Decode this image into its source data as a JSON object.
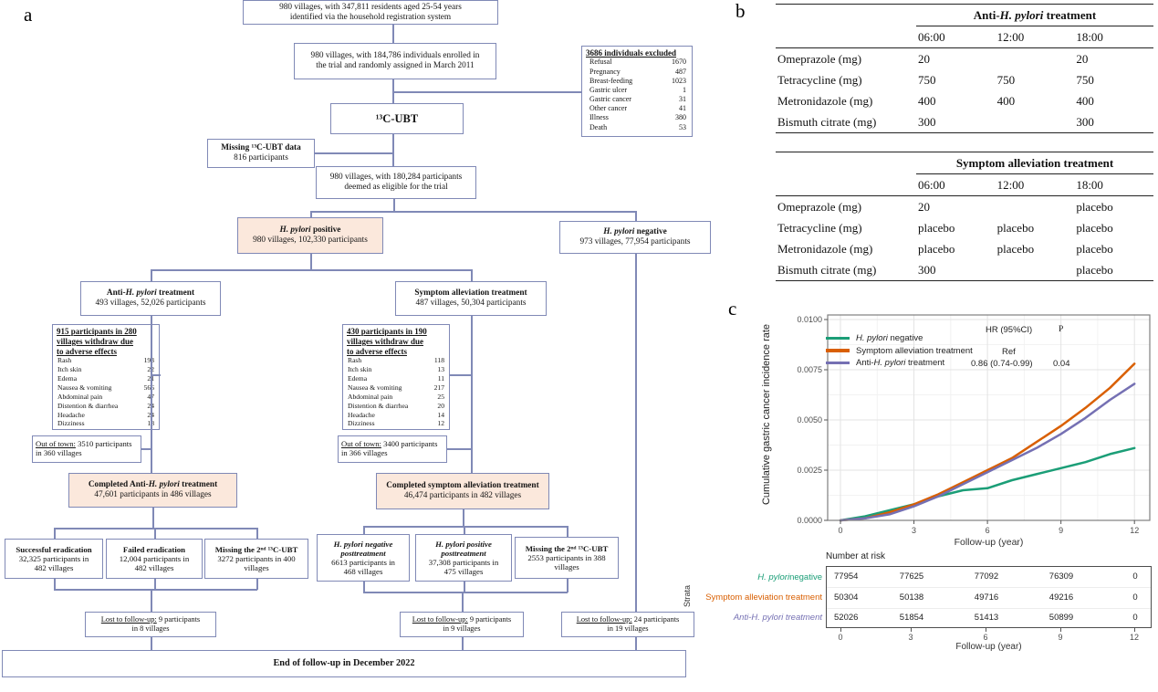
{
  "panel_labels": {
    "a": "a",
    "b": "b",
    "c": "c"
  },
  "flow": {
    "top": {
      "lines": [
        "980 villages, with 347,811 residents aged 25-54 years",
        "identified via the household registration system"
      ]
    },
    "enroll": {
      "lines": [
        "980 villages, with 184,786 individuals enrolled in",
        "the trial and randomly assigned in March 2011"
      ]
    },
    "excluded": {
      "title": "3686 individuals excluded",
      "items": [
        {
          "label": "Refusal",
          "value": "1670"
        },
        {
          "label": "Pregnancy",
          "value": "487"
        },
        {
          "label": "Breast-feeding",
          "value": "1023"
        },
        {
          "label": "Gastric ulcer",
          "value": "1"
        },
        {
          "label": "Gastric cancer",
          "value": "31"
        },
        {
          "label": "Other cancer",
          "value": "41"
        },
        {
          "label": "Illness",
          "value": "380"
        },
        {
          "label": "Death",
          "value": "53"
        }
      ]
    },
    "ubt": {
      "title": "¹³C-UBT"
    },
    "missing_ubt": {
      "title": "Missing ¹³C-UBT data",
      "sub": "816 participants"
    },
    "eligible": {
      "lines": [
        "980 villages, with 180,284 participants",
        "deemed as eligible for the trial"
      ]
    },
    "hp_pos": {
      "title": [
        {
          "t": "H. pylori",
          "b": 1,
          "i": 1
        },
        {
          "t": " positive",
          "b": 1
        }
      ],
      "sub": "980 villages, 102,330 participants"
    },
    "hp_neg": {
      "title": [
        {
          "t": "H. pylori",
          "b": 1,
          "i": 1
        },
        {
          "t": " negative",
          "b": 1
        }
      ],
      "sub": "973 villages, 77,954 participants"
    },
    "anti": {
      "title": [
        {
          "t": "Anti-",
          "b": 1
        },
        {
          "t": "H. pylori",
          "b": 1,
          "i": 1
        },
        {
          "t": " treatment",
          "b": 1
        }
      ],
      "sub": "493 villages, 52,026 participants"
    },
    "symp": {
      "title": "Symptom alleviation treatment",
      "sub": "487 villages, 50,304 participants"
    },
    "withdraw_left": {
      "title_lines": [
        "915 participants in 280",
        "villages withdraw due",
        "to adverse effects"
      ],
      "items": [
        {
          "label": "Rash",
          "value": "193"
        },
        {
          "label": "Itch skin",
          "value": "22"
        },
        {
          "label": "Edema",
          "value": "21"
        },
        {
          "label": "Nausea & vomiting",
          "value": "566"
        },
        {
          "label": "Abdominal pain",
          "value": "47"
        },
        {
          "label": "Distention & diarrhea",
          "value": "24"
        },
        {
          "label": "Headache",
          "value": "24"
        },
        {
          "label": "Dizziness",
          "value": "18"
        }
      ]
    },
    "withdraw_right": {
      "title_lines": [
        "430 participants in 190",
        "villages withdraw due",
        "to adverse effects"
      ],
      "items": [
        {
          "label": "Rash",
          "value": "118"
        },
        {
          "label": "Itch skin",
          "value": "13"
        },
        {
          "label": "Edema",
          "value": "11"
        },
        {
          "label": "Nausea & vomiting",
          "value": "217"
        },
        {
          "label": "Abdominal pain",
          "value": "25"
        },
        {
          "label": "Distention & diarrhea",
          "value": "20"
        },
        {
          "label": "Headache",
          "value": "14"
        },
        {
          "label": "Dizziness",
          "value": "12"
        }
      ]
    },
    "oot_left": {
      "text": [
        {
          "t": "Out of town:",
          "u": 1
        },
        {
          "t": " 3510 participants"
        }
      ],
      "line2": "in 360 villages"
    },
    "oot_right": {
      "text": [
        {
          "t": "Out of town:",
          "u": 1
        },
        {
          "t": " 3400 participants"
        }
      ],
      "line2": "in 366 villages"
    },
    "completed_anti": {
      "title": [
        {
          "t": "Completed Anti-",
          "b": 1
        },
        {
          "t": "H. pylori",
          "b": 1,
          "i": 1
        },
        {
          "t": " treatment",
          "b": 1
        }
      ],
      "sub": "47,601 participants in 486 villages"
    },
    "completed_symp": {
      "title": "Completed symptom alleviation treatment",
      "sub": "46,474 participants in 482 villages"
    },
    "succ": {
      "title": "Successful eradication",
      "lines": [
        "32,325 participants in",
        "482 villages"
      ]
    },
    "fail": {
      "title": "Failed eradication",
      "lines": [
        "12,004 participants in",
        "482 villages"
      ]
    },
    "miss1": {
      "title": "Missing the 2ⁿᵈ ¹³C-UBT",
      "lines": [
        "3272 participants in 400",
        "villages"
      ]
    },
    "hneg_post": {
      "title_lines": [
        "H. pylori negative",
        "posttreatment"
      ],
      "lines": [
        "6613 participants in",
        "468 villages"
      ]
    },
    "hpos_post": {
      "title_lines": [
        "H. pylori positive",
        "posttreatment"
      ],
      "lines": [
        "37,308 participants in",
        "475 villages"
      ]
    },
    "miss2": {
      "title": "Missing the 2ⁿᵈ ¹³C-UBT",
      "lines": [
        "2553 participants in 388",
        "villages"
      ]
    },
    "lost_left": {
      "text": [
        {
          "t": "Lost to follow-up:",
          "u": 1
        },
        {
          "t": " 9 participants"
        }
      ],
      "line2": "in 8 villages"
    },
    "lost_mid": {
      "text": [
        {
          "t": "Lost to follow-up:",
          "u": 1
        },
        {
          "t": " 9 participants"
        }
      ],
      "line2": "in 9 villages"
    },
    "lost_right": {
      "text": [
        {
          "t": "Lost to follow-up:",
          "u": 1
        },
        {
          "t": " 24 participants"
        }
      ],
      "line2": "in 19 villages"
    },
    "end": {
      "title": "End of follow-up in December 2022"
    }
  },
  "tables": {
    "anti": {
      "header": [
        {
          "t": "Anti-",
          "b": 1
        },
        {
          "t": "H. pylori",
          "b": 1,
          "i": 1
        },
        {
          "t": " treatment",
          "b": 1
        }
      ],
      "times": [
        "06:00",
        "12:00",
        "18:00"
      ],
      "rows": [
        {
          "label": "Omeprazole (mg)",
          "values": [
            "20",
            "",
            "20"
          ]
        },
        {
          "label": "Tetracycline (mg)",
          "values": [
            "750",
            "750",
            "750"
          ]
        },
        {
          "label": "Metronidazole (mg)",
          "values": [
            "400",
            "400",
            "400"
          ]
        },
        {
          "label": "Bismuth citrate (mg)",
          "values": [
            "300",
            "",
            "300"
          ]
        }
      ]
    },
    "symptom": {
      "header": [
        {
          "t": "Symptom alleviation treatment",
          "b": 1
        }
      ],
      "times": [
        "06:00",
        "12:00",
        "18:00"
      ],
      "rows": [
        {
          "label": "Omeprazole (mg)",
          "values": [
            "20",
            "",
            "placebo"
          ]
        },
        {
          "label": "Tetracycline (mg)",
          "values": [
            "placebo",
            "placebo",
            "placebo"
          ]
        },
        {
          "label": "Metronidazole (mg)",
          "values": [
            "placebo",
            "placebo",
            "placebo"
          ]
        },
        {
          "label": "Bismuth citrate (mg)",
          "values": [
            "300",
            "",
            "placebo"
          ]
        }
      ]
    }
  },
  "chart_data": {
    "type": "line",
    "xlabel": "Follow-up (year)",
    "ylabel": "Cumulative gastric cancer incidence rate",
    "xlim": [
      0,
      12
    ],
    "ylim": [
      0,
      0.01
    ],
    "xticks": [
      0,
      3,
      6,
      9,
      12
    ],
    "yticks": [
      0,
      0.0025,
      0.005,
      0.0075,
      0.01
    ],
    "ytick_labels": [
      "0.0000",
      "0.0025",
      "0.0050",
      "0.0075",
      "0.0100"
    ],
    "grid": true,
    "legend_position": "top-left",
    "x": [
      0,
      1,
      2,
      3,
      4,
      5,
      6,
      7,
      8,
      9,
      10,
      11,
      12
    ],
    "series": [
      {
        "name": "H. pylori negative",
        "label_rich": [
          {
            "t": "H. pylori",
            "i": 1
          },
          {
            "t": " negative"
          }
        ],
        "color": "#1B9E77",
        "values": [
          0,
          0.0002,
          0.0005,
          0.0008,
          0.0012,
          0.0015,
          0.0016,
          0.002,
          0.0023,
          0.0026,
          0.0029,
          0.0033,
          0.0036
        ]
      },
      {
        "name": "Symptom alleviation treatment",
        "label_rich": [
          {
            "t": "Symptom alleviation treatment"
          }
        ],
        "color": "#D95F02",
        "values": [
          0,
          0.0001,
          0.0004,
          0.0008,
          0.0013,
          0.0019,
          0.0025,
          0.0031,
          0.0039,
          0.0047,
          0.0056,
          0.0066,
          0.0078
        ]
      },
      {
        "name": "Anti-H. pylori treatment",
        "label_rich": [
          {
            "t": "Anti-"
          },
          {
            "t": "H. pylori",
            "i": 1
          },
          {
            "t": " treatment"
          }
        ],
        "color": "#7570B3",
        "values": [
          0,
          0.0001,
          0.0003,
          0.0007,
          0.0012,
          0.0018,
          0.0024,
          0.003,
          0.0036,
          0.0043,
          0.0051,
          0.006,
          0.0068
        ]
      }
    ],
    "hr_annotation": {
      "header": "HR (95%CI)",
      "p_header": "P",
      "ref_label": "Ref",
      "hr_value": "0.86 (0.74-0.99)",
      "p_value": "0.04"
    }
  },
  "risk": {
    "title": "Number at risk",
    "strata_label": "Strata",
    "xlabel": "Follow-up (year)",
    "xticks": [
      "0",
      "3",
      "6",
      "9",
      "12"
    ],
    "rows": [
      {
        "label_rich": [
          {
            "t": "H. pylori",
            "i": 1
          },
          {
            "t": " negative"
          }
        ],
        "color": "#1B9E77",
        "values": [
          "77954",
          "77625",
          "77092",
          "76309",
          "0"
        ]
      },
      {
        "label_rich": [
          {
            "t": "Symptom alleviation treatment"
          }
        ],
        "color": "#D95F02",
        "values": [
          "50304",
          "50138",
          "49716",
          "49216",
          "0"
        ]
      },
      {
        "label_rich": [
          {
            "t": "Anti-H. pylori treatment",
            "i": 1
          }
        ],
        "color": "#7570B3",
        "values": [
          "52026",
          "51854",
          "51413",
          "50899",
          "0"
        ]
      }
    ]
  }
}
